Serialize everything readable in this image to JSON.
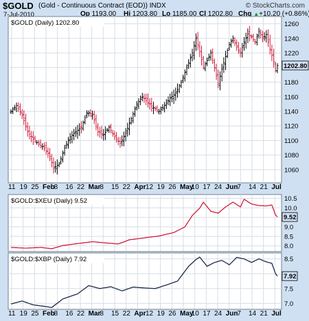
{
  "header": {
    "symbol": "$GOLD",
    "name": "(Gold - Continuous Contract (EOD)) INDX",
    "credit": "© StockCharts.com",
    "date": "7-Jul-2010",
    "quote": {
      "open_label": "Op",
      "open": "1193.00",
      "high_label": "Hi",
      "high": "1203.80",
      "low_label": "Lo",
      "low": "1185.00",
      "close_label": "Cl",
      "close": "1202.80",
      "chg_label": "Chg",
      "chg": "+10.20 (+0.86%)",
      "chg_arrow": "▲"
    }
  },
  "colors": {
    "up": "#000000",
    "down": "#d11a3a",
    "xeu_line": "#d11a3a",
    "xbp_line": "#1c2a4a",
    "last_box": "#cfe0f2"
  },
  "x_axis": {
    "labels": [
      "11",
      "19",
      "25",
      "Feb",
      "8",
      "16",
      "22",
      "Mar",
      "8",
      "15",
      "22",
      "Apr",
      "12",
      "19",
      "26",
      "May",
      "10",
      "17",
      "24",
      "Jun",
      "7",
      "14",
      "21",
      "Jul"
    ],
    "bold": [
      "Feb",
      "Mar",
      "Apr",
      "May",
      "Jun",
      "Jul"
    ]
  },
  "chart_data": [
    {
      "type": "ohlc",
      "label": "$GOLD (Daily) 1202.80",
      "last_value": "1202.80",
      "ylim": [
        1042,
        1270
      ],
      "yticks": [
        1060,
        1080,
        1100,
        1120,
        1140,
        1160,
        1180,
        1200,
        1220,
        1240,
        1260
      ],
      "anchors": [
        {
          "x": 0,
          "v": 1140
        },
        {
          "x": 3,
          "v": 1148
        },
        {
          "x": 6,
          "v": 1135
        },
        {
          "x": 9,
          "v": 1112
        },
        {
          "x": 12,
          "v": 1102
        },
        {
          "x": 15,
          "v": 1095
        },
        {
          "x": 18,
          "v": 1090
        },
        {
          "x": 21,
          "v": 1078
        },
        {
          "x": 23,
          "v": 1062
        },
        {
          "x": 26,
          "v": 1068
        },
        {
          "x": 29,
          "v": 1090
        },
        {
          "x": 32,
          "v": 1105
        },
        {
          "x": 35,
          "v": 1112
        },
        {
          "x": 38,
          "v": 1118
        },
        {
          "x": 41,
          "v": 1138
        },
        {
          "x": 44,
          "v": 1136
        },
        {
          "x": 47,
          "v": 1112
        },
        {
          "x": 50,
          "v": 1108
        },
        {
          "x": 53,
          "v": 1118
        },
        {
          "x": 56,
          "v": 1105
        },
        {
          "x": 59,
          "v": 1096
        },
        {
          "x": 62,
          "v": 1110
        },
        {
          "x": 65,
          "v": 1130
        },
        {
          "x": 68,
          "v": 1150
        },
        {
          "x": 71,
          "v": 1160
        },
        {
          "x": 74,
          "v": 1152
        },
        {
          "x": 77,
          "v": 1145
        },
        {
          "x": 80,
          "v": 1140
        },
        {
          "x": 83,
          "v": 1148
        },
        {
          "x": 86,
          "v": 1158
        },
        {
          "x": 89,
          "v": 1165
        },
        {
          "x": 92,
          "v": 1180
        },
        {
          "x": 95,
          "v": 1200
        },
        {
          "x": 98,
          "v": 1220
        },
        {
          "x": 100,
          "v": 1240
        },
        {
          "x": 102,
          "v": 1222
        },
        {
          "x": 104,
          "v": 1200
        },
        {
          "x": 106,
          "v": 1210
        },
        {
          "x": 108,
          "v": 1220
        },
        {
          "x": 110,
          "v": 1200
        },
        {
          "x": 112,
          "v": 1178
        },
        {
          "x": 114,
          "v": 1198
        },
        {
          "x": 116,
          "v": 1215
        },
        {
          "x": 118,
          "v": 1232
        },
        {
          "x": 120,
          "v": 1240
        },
        {
          "x": 122,
          "v": 1228
        },
        {
          "x": 124,
          "v": 1220
        },
        {
          "x": 126,
          "v": 1235
        },
        {
          "x": 128,
          "v": 1246
        },
        {
          "x": 130,
          "v": 1242
        },
        {
          "x": 132,
          "v": 1235
        },
        {
          "x": 134,
          "v": 1250
        },
        {
          "x": 136,
          "v": 1240
        },
        {
          "x": 138,
          "v": 1245
        },
        {
          "x": 140,
          "v": 1225
        },
        {
          "x": 142,
          "v": 1208
        },
        {
          "x": 143,
          "v": 1196
        },
        {
          "x": 144,
          "v": 1202.8
        }
      ]
    },
    {
      "type": "line",
      "label": "$GOLD:$XEU (Daily) 9.52",
      "last_value": "9.52",
      "ylim": [
        7.7,
        10.7
      ],
      "yticks": [
        8.0,
        8.5,
        9.0,
        9.5,
        10.0,
        10.5
      ],
      "tick_labels": [
        "8.0",
        "8.5",
        "9.0",
        "9.5",
        "10.0",
        "10.5"
      ],
      "anchors": [
        {
          "x": 0,
          "v": 7.92
        },
        {
          "x": 8,
          "v": 7.88
        },
        {
          "x": 16,
          "v": 7.92
        },
        {
          "x": 22,
          "v": 7.85
        },
        {
          "x": 28,
          "v": 8.02
        },
        {
          "x": 36,
          "v": 8.12
        },
        {
          "x": 44,
          "v": 8.22
        },
        {
          "x": 52,
          "v": 8.15
        },
        {
          "x": 58,
          "v": 8.1
        },
        {
          "x": 64,
          "v": 8.32
        },
        {
          "x": 72,
          "v": 8.42
        },
        {
          "x": 80,
          "v": 8.52
        },
        {
          "x": 88,
          "v": 8.7
        },
        {
          "x": 94,
          "v": 9.0
        },
        {
          "x": 98,
          "v": 9.6
        },
        {
          "x": 102,
          "v": 9.98
        },
        {
          "x": 104,
          "v": 10.3
        },
        {
          "x": 108,
          "v": 9.82
        },
        {
          "x": 112,
          "v": 9.72
        },
        {
          "x": 116,
          "v": 10.05
        },
        {
          "x": 120,
          "v": 10.3
        },
        {
          "x": 124,
          "v": 10.05
        },
        {
          "x": 126,
          "v": 10.45
        },
        {
          "x": 130,
          "v": 10.2
        },
        {
          "x": 134,
          "v": 10.12
        },
        {
          "x": 138,
          "v": 10.1
        },
        {
          "x": 141,
          "v": 10.15
        },
        {
          "x": 143,
          "v": 9.62
        },
        {
          "x": 144,
          "v": 9.52
        }
      ]
    },
    {
      "type": "line",
      "label": "$GOLD:$XBP (Daily) 7.92",
      "last_value": "7.92",
      "ylim": [
        6.8,
        8.7
      ],
      "yticks": [
        7.0,
        7.5,
        8.0,
        8.5
      ],
      "tick_labels": [
        "7.0",
        "7.5",
        "8.0",
        "8.5"
      ],
      "anchors": [
        {
          "x": 0,
          "v": 6.98
        },
        {
          "x": 6,
          "v": 7.08
        },
        {
          "x": 12,
          "v": 6.95
        },
        {
          "x": 18,
          "v": 6.9
        },
        {
          "x": 22,
          "v": 6.86
        },
        {
          "x": 28,
          "v": 7.15
        },
        {
          "x": 36,
          "v": 7.32
        },
        {
          "x": 42,
          "v": 7.6
        },
        {
          "x": 48,
          "v": 7.5
        },
        {
          "x": 54,
          "v": 7.56
        },
        {
          "x": 60,
          "v": 7.42
        },
        {
          "x": 66,
          "v": 7.55
        },
        {
          "x": 72,
          "v": 7.52
        },
        {
          "x": 78,
          "v": 7.5
        },
        {
          "x": 84,
          "v": 7.62
        },
        {
          "x": 90,
          "v": 7.75
        },
        {
          "x": 96,
          "v": 8.25
        },
        {
          "x": 100,
          "v": 8.48
        },
        {
          "x": 102,
          "v": 8.56
        },
        {
          "x": 106,
          "v": 8.25
        },
        {
          "x": 110,
          "v": 8.38
        },
        {
          "x": 114,
          "v": 8.45
        },
        {
          "x": 118,
          "v": 8.3
        },
        {
          "x": 122,
          "v": 8.55
        },
        {
          "x": 126,
          "v": 8.5
        },
        {
          "x": 130,
          "v": 8.38
        },
        {
          "x": 134,
          "v": 8.5
        },
        {
          "x": 138,
          "v": 8.4
        },
        {
          "x": 141,
          "v": 8.35
        },
        {
          "x": 143,
          "v": 8.0
        },
        {
          "x": 144,
          "v": 7.92
        }
      ]
    }
  ]
}
